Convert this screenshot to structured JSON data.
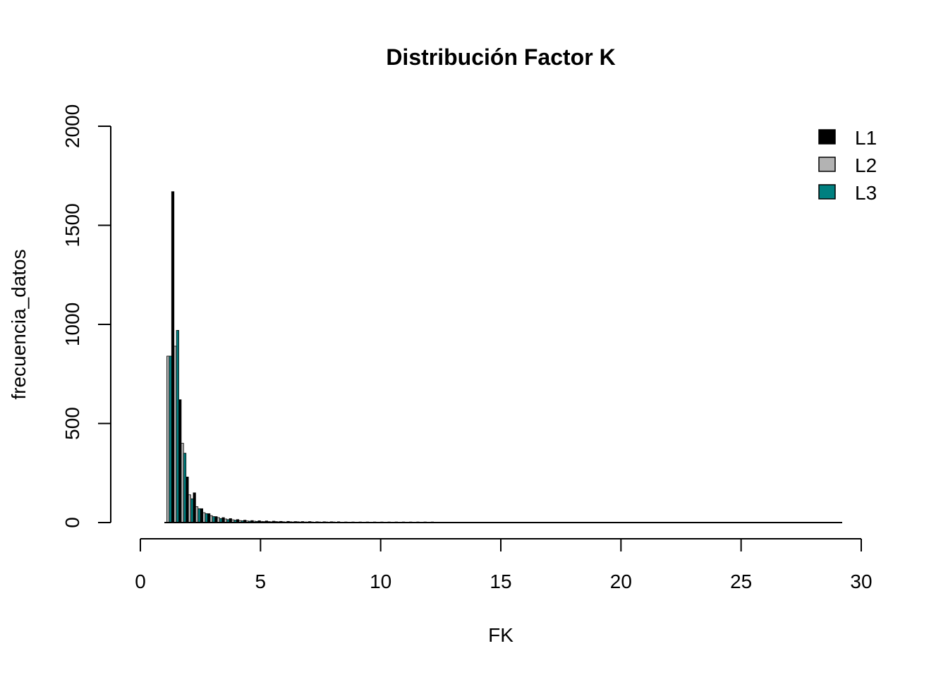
{
  "chart_data": {
    "type": "bar",
    "title": "Distribución Factor K",
    "xlabel": "FK",
    "ylabel": "frecuencia_datos",
    "xlim": [
      0,
      30
    ],
    "ylim": [
      0,
      2000
    ],
    "x_ticks": [
      "0",
      "5",
      "10",
      "15",
      "20",
      "25",
      "30"
    ],
    "y_ticks": [
      "0",
      "500",
      "1000",
      "1500",
      "2000"
    ],
    "bin_width": 0.3,
    "bin_start": 1.0,
    "grid": false,
    "legend_position": "top-right",
    "series": [
      {
        "name": "L1",
        "color": "#000000",
        "values": [
          0,
          1670,
          620,
          230,
          150,
          70,
          45,
          30,
          25,
          20,
          15,
          12,
          10,
          9,
          8,
          7,
          6,
          6,
          5,
          5,
          5,
          4,
          4,
          4,
          4,
          3,
          3,
          3,
          3,
          3,
          3,
          3,
          3,
          3,
          3,
          3,
          3,
          3,
          2,
          2,
          2,
          2,
          2,
          2,
          2,
          2,
          2,
          2,
          2,
          2,
          2,
          2,
          2,
          2,
          2,
          2,
          2,
          2,
          2,
          2,
          2,
          2,
          2,
          2,
          2,
          2,
          2,
          2,
          2,
          2,
          2,
          2,
          2,
          2,
          2,
          2,
          2,
          2,
          2,
          2,
          2,
          2,
          2,
          2,
          2,
          2,
          2,
          2,
          2,
          2,
          2,
          2,
          2,
          2
        ]
      },
      {
        "name": "L2",
        "color": "#b3b3b3",
        "values": [
          840,
          890,
          400,
          140,
          80,
          50,
          35,
          25,
          18,
          14,
          10,
          8,
          7,
          6,
          5,
          5,
          4,
          4,
          4,
          3,
          3,
          3,
          3,
          3,
          2,
          2,
          2,
          2,
          2,
          2
        ]
      },
      {
        "name": "L3",
        "color": "#008080",
        "values": [
          840,
          970,
          350,
          120,
          70,
          45,
          30,
          20,
          15,
          12,
          9,
          7,
          6,
          5,
          4,
          4,
          3,
          3,
          3,
          3,
          2,
          2,
          2,
          2,
          2,
          2,
          2,
          2,
          2,
          2
        ]
      }
    ]
  }
}
